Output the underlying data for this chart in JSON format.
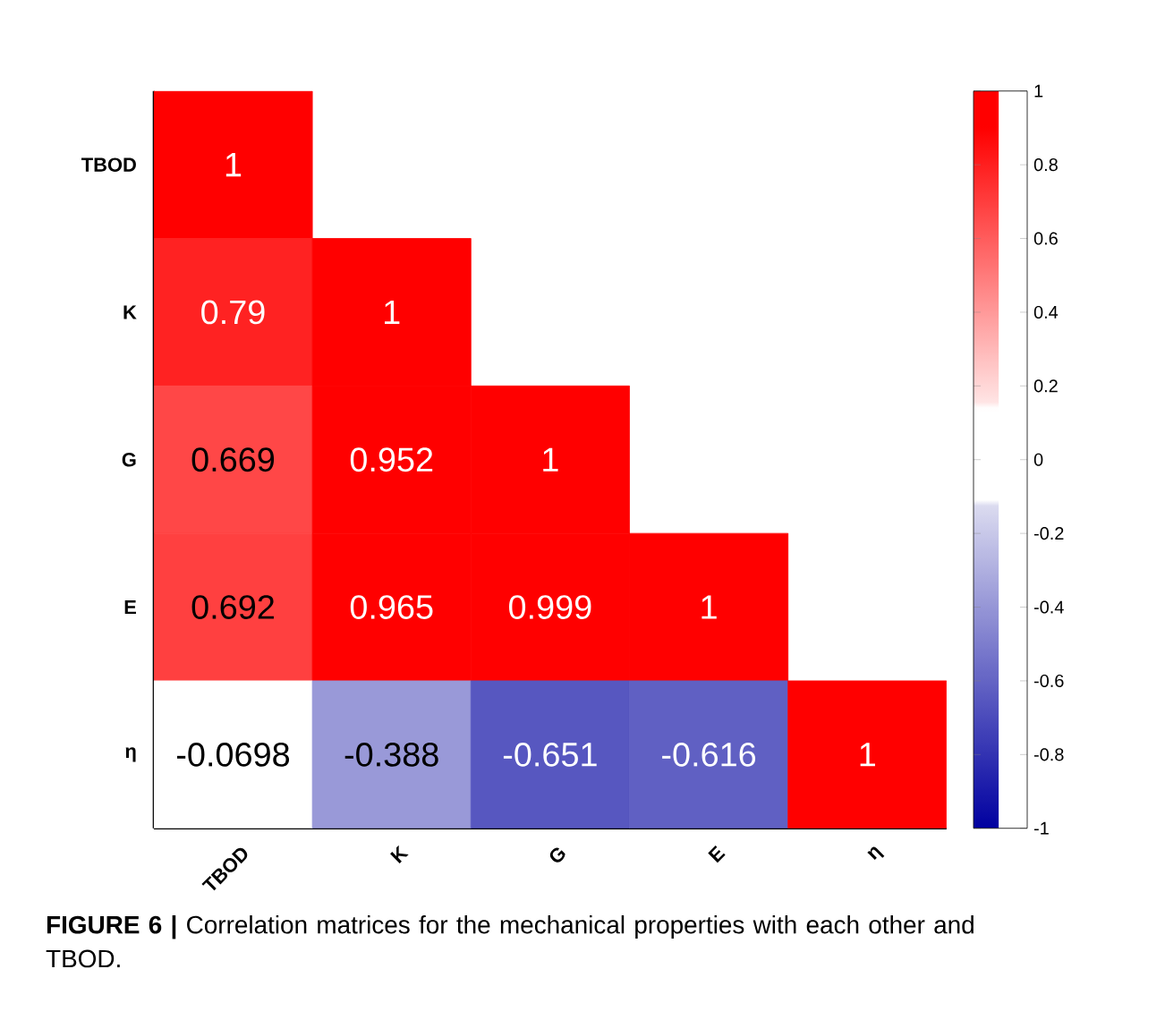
{
  "chart_data": {
    "type": "heatmap",
    "categories": [
      "TBOD",
      "K",
      "G",
      "E",
      "η"
    ],
    "y_categories": [
      "TBOD",
      "K",
      "G",
      "E",
      "η"
    ],
    "cells": [
      [
        1,
        null,
        null,
        null,
        null
      ],
      [
        0.79,
        1,
        null,
        null,
        null
      ],
      [
        0.669,
        0.952,
        1,
        null,
        null
      ],
      [
        0.692,
        0.965,
        0.999,
        1,
        null
      ],
      [
        -0.0698,
        -0.388,
        -0.651,
        -0.616,
        1
      ]
    ],
    "clim": [
      -1,
      1
    ],
    "cticks": [
      -1,
      -0.8,
      -0.6,
      -0.4,
      -0.2,
      0,
      0.2,
      0.4,
      0.6,
      0.8,
      1
    ],
    "data_labels": true,
    "annotations": [
      "**FIGURE 6 |** Correlation matrices for the mechanical properties with each other and TBOD."
    ]
  }
}
